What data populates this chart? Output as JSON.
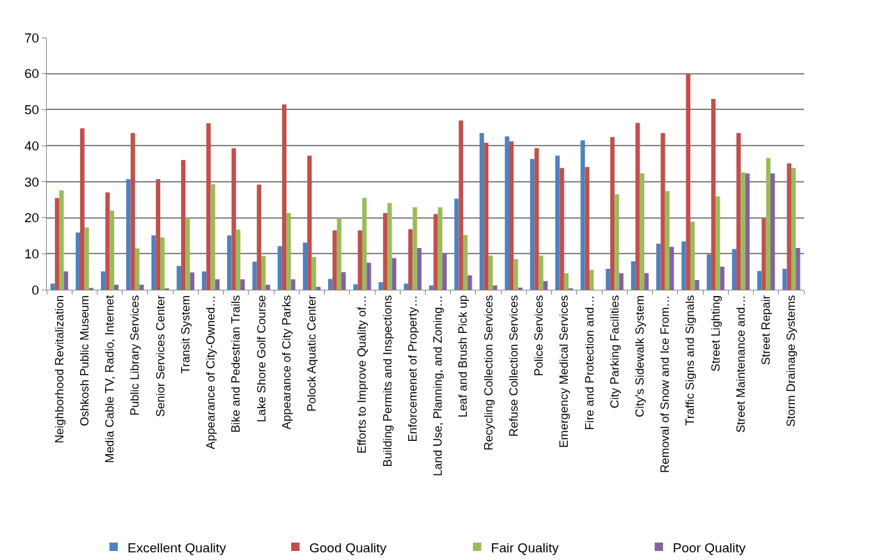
{
  "chart_data": {
    "type": "bar",
    "categories": [
      "Neighborhood Revitalization",
      "Oshkosh Public Museum",
      "Media Cable TV, Radio, Internet",
      "Public Library Services",
      "Senior Services Center",
      "Transit System",
      "Appearance of City-Owned…",
      "Bike and Pedestrian Trails",
      "Lake Shore Golf Course",
      "Appearance of City Parks",
      "Polock Aquatic Center",
      null,
      "Efforts to Improve Quality of…",
      "Building Permits and Inspections",
      "Enforcemenet of Property…",
      "Land Use, Planning, and Zoning…",
      "Leaf and Brush Pick up",
      "Recycling Collection Services",
      "Refuse Collection Services",
      "Police Services",
      "Emergency Medical Services",
      "Fire and Protection and…",
      "City Parking Facilities",
      "City's Sidewalk System",
      "Removal of Snow and Ice From…",
      "Traffic Signs and Signals",
      "Street Lighting",
      "Street Maintenance and…",
      "Street Repair",
      "Storm Drainage Systems"
    ],
    "series": [
      {
        "name": "Excellent Quality",
        "color": "#4f81bd",
        "values": [
          1.7,
          15.9,
          5.1,
          30.7,
          15.1,
          6.6,
          5.1,
          15.1,
          7.8,
          12.1,
          13.1,
          3.0,
          1.5,
          2.1,
          1.7,
          1.2,
          25.3,
          43.5,
          42.6,
          36.3,
          37.2,
          41.5,
          5.8,
          7.9,
          12.8,
          13.4,
          9.8,
          11.3,
          5.2,
          5.8
        ]
      },
      {
        "name": "Good Quality",
        "color": "#c0504d",
        "values": [
          25.5,
          44.8,
          27.0,
          43.5,
          30.7,
          36.0,
          46.2,
          39.3,
          29.2,
          51.5,
          37.2,
          16.5,
          16.5,
          21.3,
          16.8,
          21.0,
          47.0,
          40.8,
          41.2,
          39.3,
          33.8,
          34.1,
          42.4,
          46.3,
          43.5,
          59.9,
          53.0,
          43.5,
          19.8,
          35.1
        ]
      },
      {
        "name": "Fair Quality",
        "color": "#9bbb59",
        "values": [
          27.6,
          17.3,
          22.0,
          11.5,
          14.5,
          19.9,
          29.3,
          16.7,
          9.4,
          21.3,
          9.1,
          20.0,
          25.5,
          24.1,
          22.9,
          22.9,
          15.2,
          9.5,
          8.5,
          9.5,
          4.6,
          5.5,
          26.5,
          32.3,
          27.4,
          18.9,
          25.9,
          32.6,
          36.6,
          33.8
        ]
      },
      {
        "name": "Poor Quality",
        "color": "#8064a2",
        "values": [
          5.1,
          0.5,
          1.4,
          1.4,
          0.2,
          4.8,
          2.9,
          2.9,
          1.4,
          2.9,
          0.8,
          4.9,
          7.5,
          8.8,
          11.6,
          10.1,
          4.0,
          1.2,
          0.6,
          2.4,
          0.3,
          0,
          4.6,
          4.6,
          11.9,
          2.7,
          6.4,
          32.3,
          32.3,
          11.6
        ]
      }
    ],
    "ylim": [
      0,
      70
    ],
    "yticks": [
      0,
      10,
      20,
      30,
      40,
      50,
      60,
      70
    ],
    "grid": "y",
    "legend": "bottom"
  }
}
